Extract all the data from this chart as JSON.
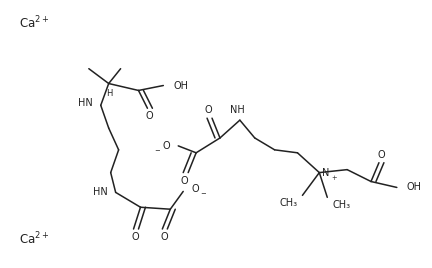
{
  "background": "#ffffff",
  "line_color": "#222222",
  "line_width": 1.1,
  "font_size": 7.0,
  "figsize": [
    4.32,
    2.68
  ],
  "dpi": 100,
  "ca1": [
    0.03,
    0.9
  ],
  "ca2": [
    0.03,
    0.1
  ]
}
